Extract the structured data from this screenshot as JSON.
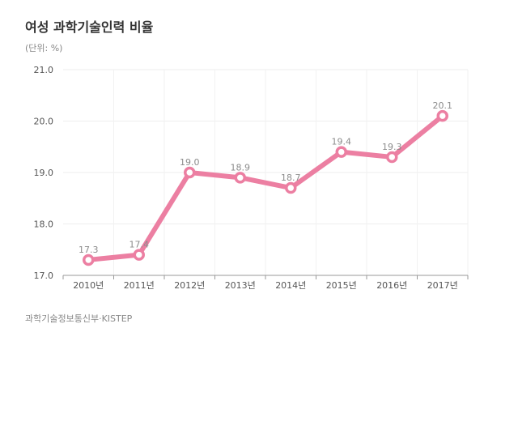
{
  "chart_data": {
    "type": "line",
    "title": "여성 과학기술인력 비율",
    "unit": "(단위: %)",
    "source": "과학기술정보통신부·KISTEP",
    "categories": [
      "2010년",
      "2011년",
      "2012년",
      "2013년",
      "2014년",
      "2015년",
      "2016년",
      "2017년"
    ],
    "series": [
      {
        "values": [
          17.3,
          17.4,
          19.0,
          18.9,
          18.7,
          19.4,
          19.3,
          20.1
        ]
      }
    ],
    "data_labels": [
      "17.3",
      "17.4",
      "19.0",
      "18.9",
      "18.7",
      "19.4",
      "19.3",
      "20.1"
    ],
    "ylim": [
      17.0,
      21.0
    ],
    "yticks": [
      "17.0",
      "18.0",
      "19.0",
      "20.0",
      "21.0"
    ],
    "grid": true,
    "line_color": "#ec7fa2"
  }
}
